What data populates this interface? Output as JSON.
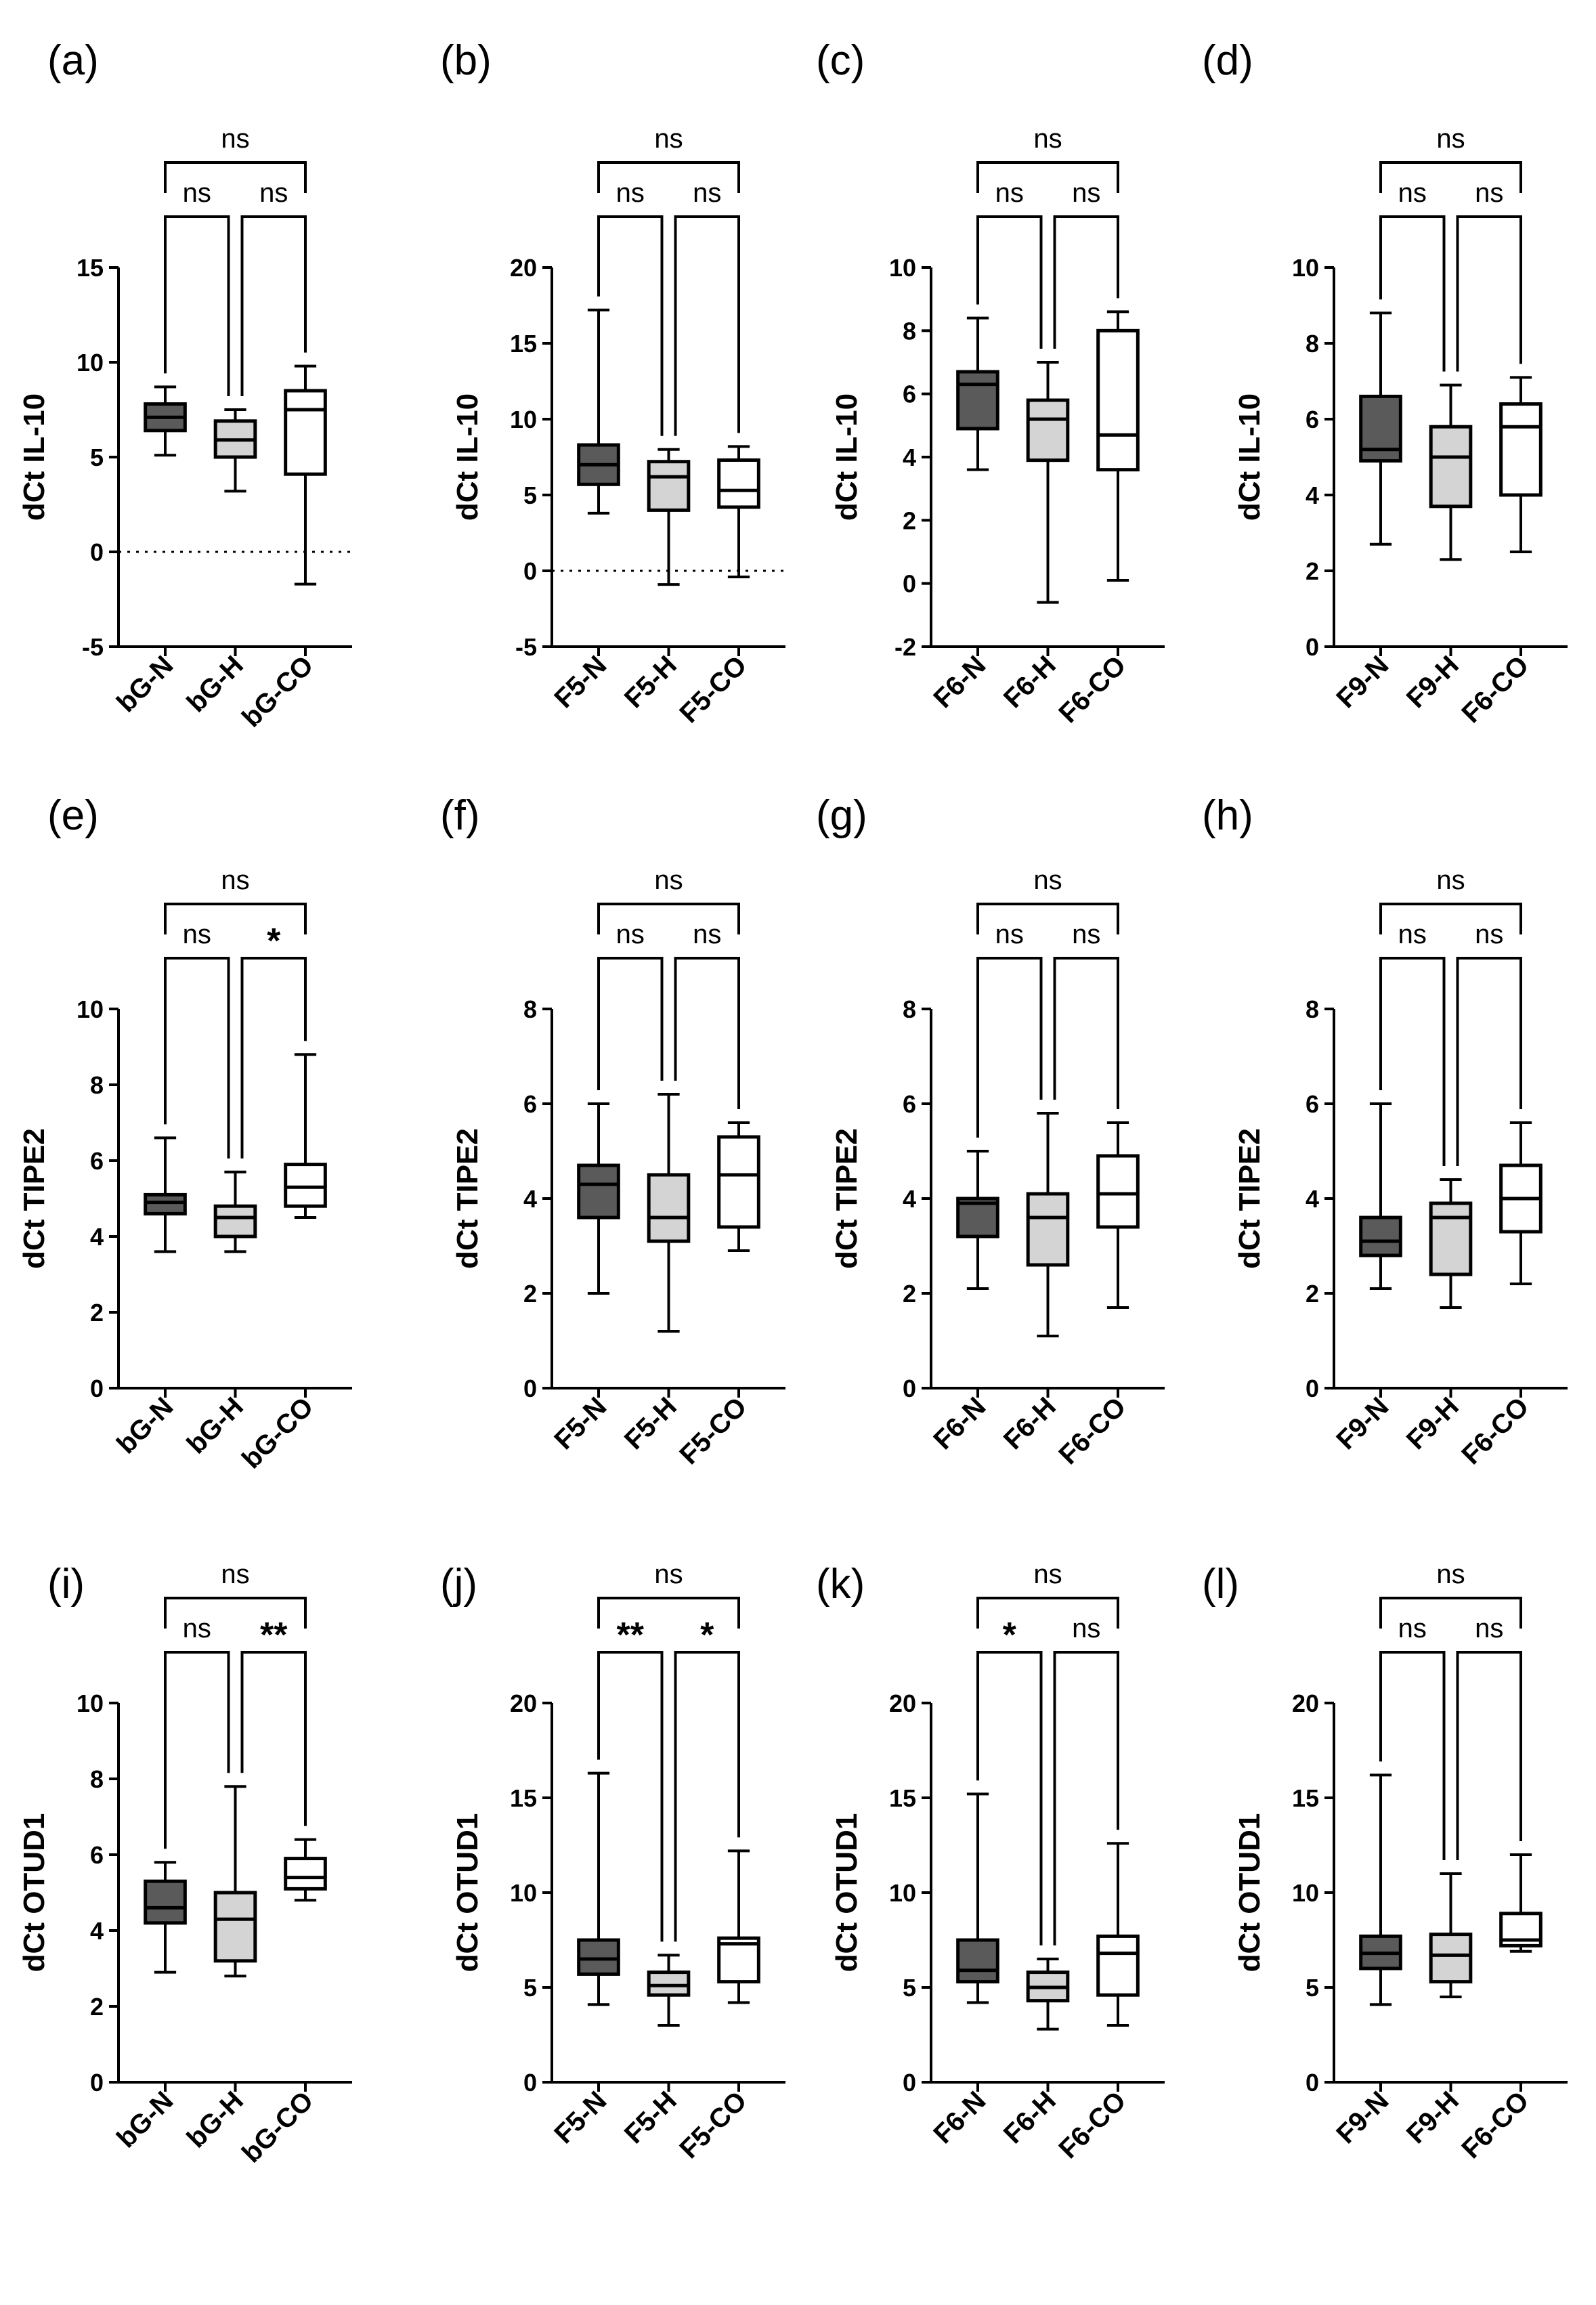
{
  "figure": {
    "fill_colors": {
      "N": "#5a5a5a",
      "H": "#d4d4d4",
      "CO": "#ffffff"
    },
    "stroke_color": "#000000"
  },
  "chart_data": [
    {
      "type": "box",
      "panel": "(a)",
      "ylabel": "dCt IL-10",
      "ylim": [
        -5,
        15
      ],
      "yticks": [
        -5,
        0,
        5,
        10,
        15
      ],
      "zero_line": true,
      "categories": [
        "bG-N",
        "bG-H",
        "bG-CO"
      ],
      "boxes": [
        {
          "group": "N",
          "min": 5.1,
          "q1": 6.4,
          "median": 7.1,
          "q3": 7.8,
          "max": 8.7
        },
        {
          "group": "H",
          "min": 3.2,
          "q1": 5.0,
          "median": 5.9,
          "q3": 6.9,
          "max": 7.5
        },
        {
          "group": "CO",
          "min": -1.7,
          "q1": 4.1,
          "median": 7.5,
          "q3": 8.5,
          "max": 9.8
        }
      ],
      "comparisons": [
        {
          "from": 0,
          "to": 1,
          "label": "ns"
        },
        {
          "from": 1,
          "to": 2,
          "label": "ns"
        },
        {
          "from": 0,
          "to": 2,
          "label": "ns"
        }
      ]
    },
    {
      "type": "box",
      "panel": "(b)",
      "ylabel": "dCt IL-10",
      "ylim": [
        -5,
        20
      ],
      "yticks": [
        -5,
        0,
        5,
        10,
        15,
        20
      ],
      "zero_line": true,
      "categories": [
        "F5-N",
        "F5-H",
        "F5-CO"
      ],
      "boxes": [
        {
          "group": "N",
          "min": 3.8,
          "q1": 5.7,
          "median": 7.0,
          "q3": 8.3,
          "max": 17.2
        },
        {
          "group": "H",
          "min": -0.9,
          "q1": 4.0,
          "median": 6.2,
          "q3": 7.2,
          "max": 8.0
        },
        {
          "group": "CO",
          "min": -0.4,
          "q1": 4.2,
          "median": 5.3,
          "q3": 7.3,
          "max": 8.2
        }
      ],
      "comparisons": [
        {
          "from": 0,
          "to": 1,
          "label": "ns"
        },
        {
          "from": 1,
          "to": 2,
          "label": "ns"
        },
        {
          "from": 0,
          "to": 2,
          "label": "ns"
        }
      ]
    },
    {
      "type": "box",
      "panel": "(c)",
      "ylabel": "dCt IL-10",
      "ylim": [
        -2,
        10
      ],
      "yticks": [
        -2,
        0,
        2,
        4,
        6,
        8,
        10
      ],
      "zero_line": false,
      "categories": [
        "F6-N",
        "F6-H",
        "F6-CO"
      ],
      "boxes": [
        {
          "group": "N",
          "min": 3.6,
          "q1": 4.9,
          "median": 6.3,
          "q3": 6.7,
          "max": 8.4
        },
        {
          "group": "H",
          "min": -0.6,
          "q1": 3.9,
          "median": 5.2,
          "q3": 5.8,
          "max": 7.0
        },
        {
          "group": "CO",
          "min": 0.1,
          "q1": 3.6,
          "median": 4.7,
          "q3": 8.0,
          "max": 8.6
        }
      ],
      "comparisons": [
        {
          "from": 0,
          "to": 1,
          "label": "ns"
        },
        {
          "from": 1,
          "to": 2,
          "label": "ns"
        },
        {
          "from": 0,
          "to": 2,
          "label": "ns"
        }
      ]
    },
    {
      "type": "box",
      "panel": "(d)",
      "ylabel": "dCt IL-10",
      "ylim": [
        0,
        10
      ],
      "yticks": [
        0,
        2,
        4,
        6,
        8,
        10
      ],
      "zero_line": false,
      "categories": [
        "F9-N",
        "F9-H",
        "F6-CO"
      ],
      "boxes": [
        {
          "group": "N",
          "min": 2.7,
          "q1": 4.9,
          "median": 5.2,
          "q3": 6.6,
          "max": 8.8
        },
        {
          "group": "H",
          "min": 2.3,
          "q1": 3.7,
          "median": 5.0,
          "q3": 5.8,
          "max": 6.9
        },
        {
          "group": "CO",
          "min": 2.5,
          "q1": 4.0,
          "median": 5.8,
          "q3": 6.4,
          "max": 7.1
        }
      ],
      "comparisons": [
        {
          "from": 0,
          "to": 1,
          "label": "ns"
        },
        {
          "from": 1,
          "to": 2,
          "label": "ns"
        },
        {
          "from": 0,
          "to": 2,
          "label": "ns"
        }
      ]
    },
    {
      "type": "box",
      "panel": "(e)",
      "ylabel": "dCt TIPE2",
      "ylim": [
        0,
        10
      ],
      "yticks": [
        0,
        2,
        4,
        6,
        8,
        10
      ],
      "zero_line": false,
      "categories": [
        "bG-N",
        "bG-H",
        "bG-CO"
      ],
      "boxes": [
        {
          "group": "N",
          "min": 3.6,
          "q1": 4.6,
          "median": 4.9,
          "q3": 5.1,
          "max": 6.6
        },
        {
          "group": "H",
          "min": 3.6,
          "q1": 4.0,
          "median": 4.5,
          "q3": 4.8,
          "max": 5.7
        },
        {
          "group": "CO",
          "min": 4.5,
          "q1": 4.8,
          "median": 5.3,
          "q3": 5.9,
          "max": 8.8
        }
      ],
      "comparisons": [
        {
          "from": 0,
          "to": 1,
          "label": "ns"
        },
        {
          "from": 1,
          "to": 2,
          "label": "*"
        },
        {
          "from": 0,
          "to": 2,
          "label": "ns"
        }
      ]
    },
    {
      "type": "box",
      "panel": "(f)",
      "ylabel": "dCt TIPE2",
      "ylim": [
        0,
        8
      ],
      "yticks": [
        0,
        2,
        4,
        6,
        8
      ],
      "zero_line": false,
      "categories": [
        "F5-N",
        "F5-H",
        "F5-CO"
      ],
      "boxes": [
        {
          "group": "N",
          "min": 2.0,
          "q1": 3.6,
          "median": 4.3,
          "q3": 4.7,
          "max": 6.0
        },
        {
          "group": "H",
          "min": 1.2,
          "q1": 3.1,
          "median": 3.6,
          "q3": 4.5,
          "max": 6.2
        },
        {
          "group": "CO",
          "min": 2.9,
          "q1": 3.4,
          "median": 4.5,
          "q3": 5.3,
          "max": 5.6
        }
      ],
      "comparisons": [
        {
          "from": 0,
          "to": 1,
          "label": "ns"
        },
        {
          "from": 1,
          "to": 2,
          "label": "ns"
        },
        {
          "from": 0,
          "to": 2,
          "label": "ns"
        }
      ]
    },
    {
      "type": "box",
      "panel": "(g)",
      "ylabel": "dCt TIPE2",
      "ylim": [
        0,
        8
      ],
      "yticks": [
        0,
        2,
        4,
        6,
        8
      ],
      "zero_line": false,
      "categories": [
        "F6-N",
        "F6-H",
        "F6-CO"
      ],
      "boxes": [
        {
          "group": "N",
          "min": 2.1,
          "q1": 3.2,
          "median": 3.9,
          "q3": 4.0,
          "max": 5.0
        },
        {
          "group": "H",
          "min": 1.1,
          "q1": 2.6,
          "median": 3.6,
          "q3": 4.1,
          "max": 5.8
        },
        {
          "group": "CO",
          "min": 1.7,
          "q1": 3.4,
          "median": 4.1,
          "q3": 4.9,
          "max": 5.6
        }
      ],
      "comparisons": [
        {
          "from": 0,
          "to": 1,
          "label": "ns"
        },
        {
          "from": 1,
          "to": 2,
          "label": "ns"
        },
        {
          "from": 0,
          "to": 2,
          "label": "ns"
        }
      ]
    },
    {
      "type": "box",
      "panel": "(h)",
      "ylabel": "dCt TIPE2",
      "ylim": [
        0,
        8
      ],
      "yticks": [
        0,
        2,
        4,
        6,
        8
      ],
      "zero_line": false,
      "categories": [
        "F9-N",
        "F9-H",
        "F6-CO"
      ],
      "boxes": [
        {
          "group": "N",
          "min": 2.1,
          "q1": 2.8,
          "median": 3.1,
          "q3": 3.6,
          "max": 6.0
        },
        {
          "group": "H",
          "min": 1.7,
          "q1": 2.4,
          "median": 3.6,
          "q3": 3.9,
          "max": 4.4
        },
        {
          "group": "CO",
          "min": 2.2,
          "q1": 3.3,
          "median": 4.0,
          "q3": 4.7,
          "max": 5.6
        }
      ],
      "comparisons": [
        {
          "from": 0,
          "to": 1,
          "label": "ns"
        },
        {
          "from": 1,
          "to": 2,
          "label": "ns"
        },
        {
          "from": 0,
          "to": 2,
          "label": "ns"
        }
      ]
    },
    {
      "type": "box",
      "panel": "(i)",
      "ylabel": "dCt OTUD1",
      "ylim": [
        0,
        10
      ],
      "yticks": [
        0,
        2,
        4,
        6,
        8,
        10
      ],
      "zero_line": false,
      "categories": [
        "bG-N",
        "bG-H",
        "bG-CO"
      ],
      "boxes": [
        {
          "group": "N",
          "min": 2.9,
          "q1": 4.2,
          "median": 4.6,
          "q3": 5.3,
          "max": 5.8
        },
        {
          "group": "H",
          "min": 2.8,
          "q1": 3.2,
          "median": 4.3,
          "q3": 5.0,
          "max": 7.8
        },
        {
          "group": "CO",
          "min": 4.8,
          "q1": 5.1,
          "median": 5.4,
          "q3": 5.9,
          "max": 6.4
        }
      ],
      "comparisons": [
        {
          "from": 0,
          "to": 1,
          "label": "ns"
        },
        {
          "from": 1,
          "to": 2,
          "label": "**"
        },
        {
          "from": 0,
          "to": 2,
          "label": "ns"
        }
      ]
    },
    {
      "type": "box",
      "panel": "(j)",
      "ylabel": "dCt OTUD1",
      "ylim": [
        0,
        20
      ],
      "yticks": [
        0,
        5,
        10,
        15,
        20
      ],
      "zero_line": false,
      "categories": [
        "F5-N",
        "F5-H",
        "F5-CO"
      ],
      "boxes": [
        {
          "group": "N",
          "min": 4.1,
          "q1": 5.7,
          "median": 6.5,
          "q3": 7.5,
          "max": 16.3
        },
        {
          "group": "H",
          "min": 3.0,
          "q1": 4.6,
          "median": 5.1,
          "q3": 5.8,
          "max": 6.7
        },
        {
          "group": "CO",
          "min": 4.2,
          "q1": 5.3,
          "median": 7.3,
          "q3": 7.6,
          "max": 12.2
        }
      ],
      "comparisons": [
        {
          "from": 0,
          "to": 1,
          "label": "**"
        },
        {
          "from": 1,
          "to": 2,
          "label": "*"
        },
        {
          "from": 0,
          "to": 2,
          "label": "ns"
        }
      ]
    },
    {
      "type": "box",
      "panel": "(k)",
      "ylabel": "dCt OTUD1",
      "ylim": [
        0,
        20
      ],
      "yticks": [
        0,
        5,
        10,
        15,
        20
      ],
      "zero_line": false,
      "categories": [
        "F6-N",
        "F6-H",
        "F6-CO"
      ],
      "boxes": [
        {
          "group": "N",
          "min": 4.2,
          "q1": 5.3,
          "median": 5.9,
          "q3": 7.5,
          "max": 15.2
        },
        {
          "group": "H",
          "min": 2.8,
          "q1": 4.3,
          "median": 5.0,
          "q3": 5.8,
          "max": 6.5
        },
        {
          "group": "CO",
          "min": 3.0,
          "q1": 4.6,
          "median": 6.8,
          "q3": 7.7,
          "max": 12.6
        }
      ],
      "comparisons": [
        {
          "from": 0,
          "to": 1,
          "label": "*"
        },
        {
          "from": 1,
          "to": 2,
          "label": "ns"
        },
        {
          "from": 0,
          "to": 2,
          "label": "ns"
        }
      ]
    },
    {
      "type": "box",
      "panel": "(l)",
      "ylabel": "dCt OTUD1",
      "ylim": [
        0,
        20
      ],
      "yticks": [
        0,
        5,
        10,
        15,
        20
      ],
      "zero_line": false,
      "categories": [
        "F9-N",
        "F9-H",
        "F6-CO"
      ],
      "boxes": [
        {
          "group": "N",
          "min": 4.1,
          "q1": 6.0,
          "median": 6.8,
          "q3": 7.7,
          "max": 16.2
        },
        {
          "group": "H",
          "min": 4.5,
          "q1": 5.3,
          "median": 6.7,
          "q3": 7.8,
          "max": 11.0
        },
        {
          "group": "CO",
          "min": 6.9,
          "q1": 7.2,
          "median": 7.5,
          "q3": 8.9,
          "max": 12.0
        }
      ],
      "comparisons": [
        {
          "from": 0,
          "to": 1,
          "label": "ns"
        },
        {
          "from": 1,
          "to": 2,
          "label": "ns"
        },
        {
          "from": 0,
          "to": 2,
          "label": "ns"
        }
      ]
    }
  ]
}
